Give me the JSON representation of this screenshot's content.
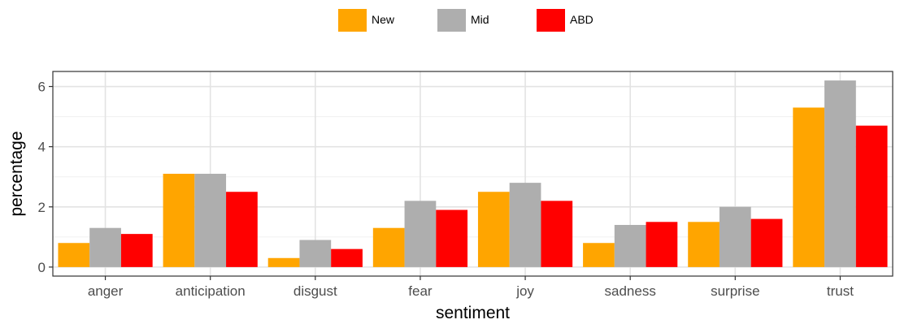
{
  "chart_data": {
    "type": "bar",
    "title": "",
    "xlabel": "sentiment",
    "ylabel": "percentage",
    "categories": [
      "anger",
      "anticipation",
      "disgust",
      "fear",
      "joy",
      "sadness",
      "surprise",
      "trust"
    ],
    "series": [
      {
        "name": "New",
        "color": "#FFA500",
        "values": [
          0.8,
          3.1,
          0.3,
          1.3,
          2.5,
          0.8,
          1.5,
          5.3
        ]
      },
      {
        "name": "Mid",
        "color": "#AEAEAE",
        "values": [
          1.3,
          3.1,
          0.9,
          2.2,
          2.8,
          1.4,
          2.0,
          6.2
        ]
      },
      {
        "name": "ABD",
        "color": "#FF0000",
        "values": [
          1.1,
          2.5,
          0.6,
          1.9,
          2.2,
          1.5,
          1.6,
          4.7
        ]
      }
    ],
    "ylim": [
      -0.3,
      6.5
    ],
    "yticks": [
      0,
      2,
      4,
      6
    ],
    "grid": true,
    "legend_position": "top-center"
  }
}
